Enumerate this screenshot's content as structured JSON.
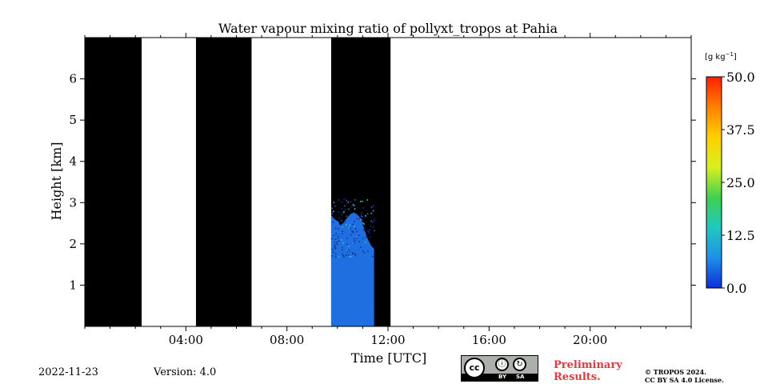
{
  "chart_data": {
    "type": "heatmap",
    "title": "Water vapour mixing ratio of pollyxt_tropos at Pahia",
    "xlabel": "Time [UTC]",
    "ylabel": "Height [km]",
    "xlim": [
      0,
      24
    ],
    "ylim": [
      0,
      7
    ],
    "x_ticks": [
      4,
      8,
      12,
      16,
      20
    ],
    "x_tick_labels": [
      "04:00",
      "08:00",
      "12:00",
      "16:00",
      "20:00"
    ],
    "y_ticks": [
      1,
      2,
      3,
      4,
      5,
      6
    ],
    "y_tick_labels": [
      "1",
      "2",
      "3",
      "4",
      "5",
      "6"
    ],
    "no_data_periods_hours": [
      [
        0.0,
        2.25
      ],
      [
        4.4,
        6.6
      ],
      [
        9.75,
        12.1
      ]
    ],
    "water_vapour_region": {
      "time_range_hours": [
        9.75,
        11.45
      ],
      "height_range_km": [
        0.0,
        2.6
      ],
      "approx_value_g_per_kg": 5
    },
    "colorbar": {
      "label": "[g kg$^{-1}$]",
      "label_display": "[g kg",
      "label_sup": "−1",
      "label_close": "]",
      "min": 0.0,
      "max": 50.0,
      "ticks": [
        0.0,
        12.5,
        25.0,
        37.5,
        50.0
      ],
      "tick_labels": [
        "0.0",
        "12.5",
        "25.0",
        "37.5",
        "50.0"
      ],
      "colors": [
        "#0a30d8",
        "#1f8fe8",
        "#20c8c0",
        "#40d050",
        "#d8f020",
        "#ffd000",
        "#ff8000",
        "#ff2000"
      ]
    },
    "colors": {
      "no_data": "#000000",
      "wv_main": "#1f6fe0",
      "wv_dark": "#10309a",
      "wv_light": "#38c0c8"
    }
  },
  "footer": {
    "date": "2022-11-23",
    "version": "Version: 4.0",
    "preliminary_line1": "Preliminary",
    "preliminary_line2": "Results.",
    "copyright_line1": "© TROPOS 2024.",
    "copyright_line2": "CC BY SA 4.0 License.",
    "license_badge": {
      "cc": "cc",
      "by": "BY",
      "sa": "SA"
    }
  }
}
